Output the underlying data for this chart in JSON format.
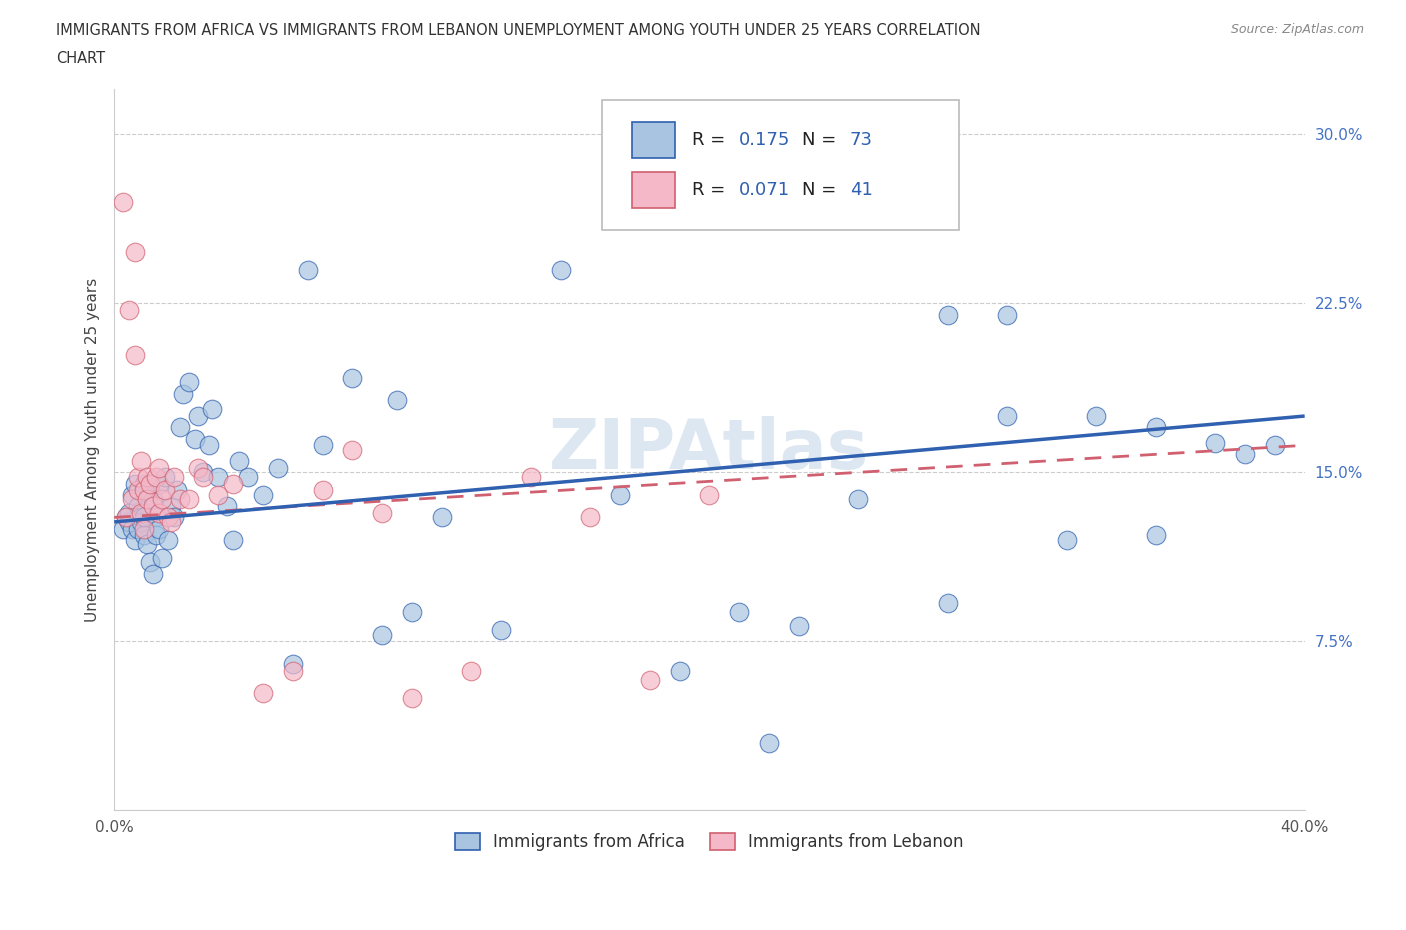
{
  "title": "IMMIGRANTS FROM AFRICA VS IMMIGRANTS FROM LEBANON UNEMPLOYMENT AMONG YOUTH UNDER 25 YEARS CORRELATION\nCHART",
  "source": "Source: ZipAtlas.com",
  "ylabel": "Unemployment Among Youth under 25 years",
  "xlim": [
    0.0,
    0.4
  ],
  "ylim": [
    0.0,
    0.32
  ],
  "R_africa": 0.175,
  "N_africa": 73,
  "R_lebanon": 0.071,
  "N_lebanon": 41,
  "color_africa": "#a8c4e0",
  "color_lebanon": "#f4b8c8",
  "line_color_africa": "#3060b0",
  "line_color_lebanon": "#d06070",
  "watermark": "ZIPAtlas",
  "line_africa_x0": 0.0,
  "line_africa_y0": 0.128,
  "line_africa_x1": 0.4,
  "line_africa_y1": 0.175,
  "line_leb_x0": 0.0,
  "line_leb_y0": 0.13,
  "line_leb_x1": 0.4,
  "line_leb_y1": 0.162,
  "africa_x": [
    0.003,
    0.004,
    0.005,
    0.005,
    0.006,
    0.006,
    0.007,
    0.007,
    0.008,
    0.008,
    0.009,
    0.009,
    0.01,
    0.01,
    0.01,
    0.011,
    0.011,
    0.012,
    0.012,
    0.013,
    0.013,
    0.014,
    0.014,
    0.015,
    0.015,
    0.016,
    0.017,
    0.018,
    0.019,
    0.02,
    0.021,
    0.022,
    0.023,
    0.025,
    0.027,
    0.028,
    0.03,
    0.032,
    0.033,
    0.035,
    0.038,
    0.04,
    0.042,
    0.045,
    0.05,
    0.055,
    0.06,
    0.065,
    0.07,
    0.08,
    0.09,
    0.095,
    0.1,
    0.11,
    0.13,
    0.15,
    0.17,
    0.19,
    0.21,
    0.23,
    0.25,
    0.28,
    0.3,
    0.32,
    0.33,
    0.35,
    0.37,
    0.38,
    0.39,
    0.35,
    0.28,
    0.22,
    0.3
  ],
  "africa_y": [
    0.125,
    0.13,
    0.128,
    0.132,
    0.125,
    0.14,
    0.12,
    0.145,
    0.125,
    0.135,
    0.13,
    0.128,
    0.122,
    0.13,
    0.145,
    0.118,
    0.138,
    0.11,
    0.142,
    0.105,
    0.138,
    0.13,
    0.122,
    0.125,
    0.145,
    0.112,
    0.148,
    0.12,
    0.135,
    0.13,
    0.142,
    0.17,
    0.185,
    0.19,
    0.165,
    0.175,
    0.15,
    0.162,
    0.178,
    0.148,
    0.135,
    0.12,
    0.155,
    0.148,
    0.14,
    0.152,
    0.065,
    0.24,
    0.162,
    0.192,
    0.078,
    0.182,
    0.088,
    0.13,
    0.08,
    0.24,
    0.14,
    0.062,
    0.088,
    0.082,
    0.138,
    0.22,
    0.175,
    0.12,
    0.175,
    0.17,
    0.163,
    0.158,
    0.162,
    0.122,
    0.092,
    0.03,
    0.22
  ],
  "lebanon_x": [
    0.003,
    0.004,
    0.005,
    0.006,
    0.007,
    0.007,
    0.008,
    0.008,
    0.009,
    0.009,
    0.01,
    0.01,
    0.011,
    0.011,
    0.012,
    0.013,
    0.014,
    0.015,
    0.015,
    0.016,
    0.017,
    0.018,
    0.019,
    0.02,
    0.022,
    0.025,
    0.028,
    0.03,
    0.035,
    0.04,
    0.05,
    0.06,
    0.07,
    0.08,
    0.09,
    0.1,
    0.12,
    0.14,
    0.16,
    0.18,
    0.2
  ],
  "lebanon_y": [
    0.27,
    0.13,
    0.222,
    0.138,
    0.248,
    0.202,
    0.142,
    0.148,
    0.132,
    0.155,
    0.125,
    0.142,
    0.138,
    0.148,
    0.145,
    0.135,
    0.148,
    0.132,
    0.152,
    0.138,
    0.142,
    0.13,
    0.128,
    0.148,
    0.138,
    0.138,
    0.152,
    0.148,
    0.14,
    0.145,
    0.052,
    0.062,
    0.142,
    0.16,
    0.132,
    0.05,
    0.062,
    0.148,
    0.13,
    0.058,
    0.14
  ]
}
